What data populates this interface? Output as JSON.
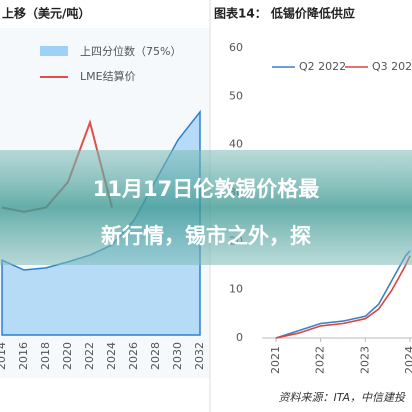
{
  "chart_data": [
    {
      "type": "line",
      "title": "上移（美元/吨）",
      "categories": [
        "2014",
        "2016",
        "2018",
        "2020",
        "2022",
        "2024",
        "2026",
        "2028",
        "2030",
        "2032"
      ],
      "ylim": [
        0,
        60000
      ],
      "series": [
        {
          "name": "上四分位数（75%）",
          "color": "#9fd0f5",
          "type": "area",
          "values": [
            17600,
            15300,
            15800,
            17200,
            18800,
            21200,
            27000,
            36500,
            45900,
            52500
          ]
        },
        {
          "name": "LME结算价",
          "color": "#e0504a",
          "type": "line",
          "values": [
            30000,
            29000,
            30000,
            36000,
            50000,
            30000,
            null,
            null,
            null,
            null
          ]
        }
      ]
    },
    {
      "type": "line",
      "title": "图表14：   低锡价降低供应",
      "x": [
        2021,
        2021.5,
        2022,
        2022.5,
        2023,
        2023.3,
        2023.6,
        2023.9,
        2024
      ],
      "xlim": [
        2021,
        2024
      ],
      "xticks": [
        2021,
        2022,
        2023,
        2024
      ],
      "ylim": [
        0,
        60
      ],
      "yticks": [
        0,
        10,
        20,
        30,
        40,
        50,
        60
      ],
      "series": [
        {
          "name": "Q2 2022",
          "color": "#3f7fc4",
          "values": [
            0,
            1.5,
            3,
            3.5,
            4.5,
            7,
            12,
            17,
            18
          ]
        },
        {
          "name": "Q3 2022",
          "color": "#d9463f",
          "values": [
            0,
            1,
            2.5,
            3,
            4,
            6,
            10,
            15,
            17
          ]
        }
      ]
    }
  ],
  "source": "资料来源：ITA，中信建投",
  "overlay": {
    "lines": [
      "11月17日伦敦锡价格最",
      "新行情，锡市之外，探"
    ]
  }
}
